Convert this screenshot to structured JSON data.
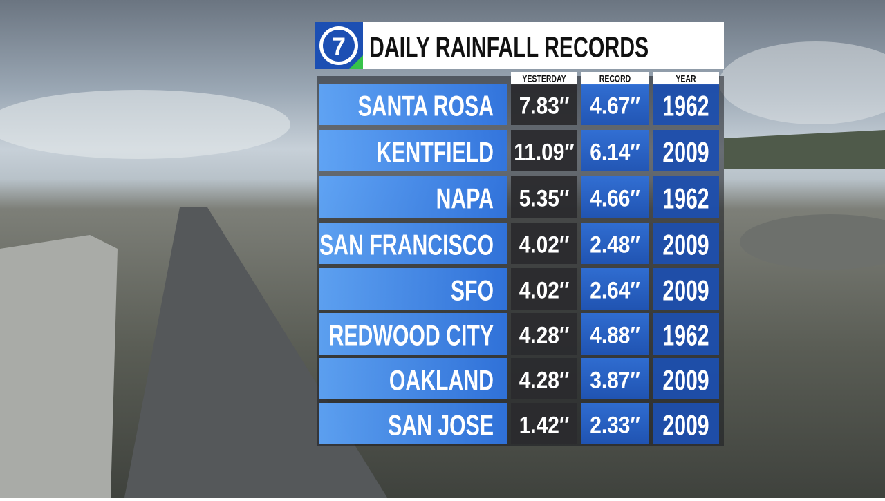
{
  "header": {
    "logo": "7",
    "title": "DAILY RAINFALL RECORDS"
  },
  "table": {
    "columns": [
      "YESTERDAY",
      "RECORD",
      "YEAR"
    ],
    "rows": [
      [
        "SANTA ROSA",
        "7.83″",
        "4.67″",
        "1962"
      ],
      [
        "KENTFIELD",
        "11.09″",
        "6.14″",
        "2009"
      ],
      [
        "NAPA",
        "5.35″",
        "4.66″",
        "1962"
      ],
      [
        "SAN FRANCISCO",
        "4.02″",
        "2.48″",
        "2009"
      ],
      [
        "SFO",
        "4.02″",
        "2.64″",
        "2009"
      ],
      [
        "REDWOOD CITY",
        "4.28″",
        "4.88″",
        "1962"
      ],
      [
        "OAKLAND",
        "4.28″",
        "3.87″",
        "2009"
      ],
      [
        "SAN JOSE",
        "1.42″",
        "2.33″",
        "2009"
      ]
    ]
  }
}
